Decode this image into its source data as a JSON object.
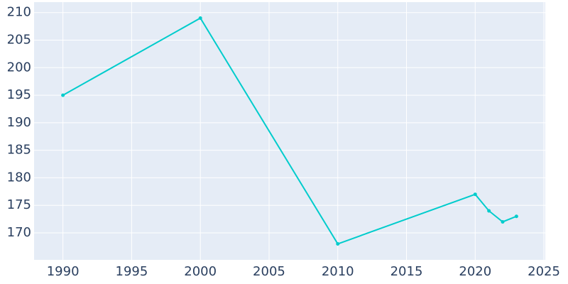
{
  "chart_data": {
    "type": "line",
    "x": [
      1990,
      2000,
      2010,
      2020,
      2021,
      2022,
      2023
    ],
    "series": [
      {
        "color": "#00cccc",
        "values": [
          195,
          209,
          168,
          177,
          174,
          172,
          173
        ]
      }
    ],
    "xlim": [
      1987.9,
      2025.1
    ],
    "xticks": [
      1990,
      1995,
      2000,
      2005,
      2010,
      2015,
      2020,
      2025
    ],
    "ylim": [
      165.1,
      211.9
    ],
    "yticks": [
      170,
      175,
      180,
      185,
      190,
      195,
      200,
      205,
      210
    ],
    "grid": true
  }
}
